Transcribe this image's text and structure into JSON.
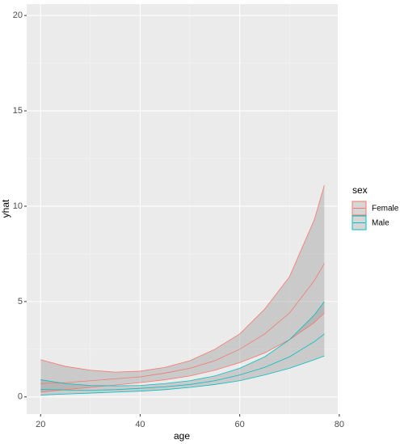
{
  "chart_data": {
    "type": "ribbon-line",
    "x_label": "age",
    "y_label": "yhat",
    "legend_title": "sex",
    "x": [
      20,
      25,
      30,
      35,
      40,
      45,
      50,
      55,
      60,
      65,
      70,
      75,
      77
    ],
    "series": [
      {
        "name": "Female",
        "color": "#F8766D",
        "values": [
          0.7,
          0.75,
          0.85,
          0.95,
          1.05,
          1.25,
          1.5,
          1.9,
          2.5,
          3.3,
          4.4,
          6.1,
          7.0
        ],
        "lower": [
          0.25,
          0.38,
          0.5,
          0.62,
          0.75,
          0.9,
          1.1,
          1.4,
          1.8,
          2.3,
          3.0,
          3.9,
          4.4
        ],
        "upper": [
          1.95,
          1.6,
          1.4,
          1.3,
          1.35,
          1.55,
          1.9,
          2.5,
          3.3,
          4.6,
          6.3,
          9.3,
          11.1
        ]
      },
      {
        "name": "Male",
        "color": "#00BFC4",
        "values": [
          0.4,
          0.36,
          0.35,
          0.38,
          0.45,
          0.53,
          0.65,
          0.85,
          1.15,
          1.55,
          2.1,
          2.9,
          3.3
        ],
        "lower": [
          0.1,
          0.15,
          0.2,
          0.25,
          0.3,
          0.38,
          0.5,
          0.65,
          0.85,
          1.15,
          1.5,
          1.95,
          2.15
        ],
        "upper": [
          0.9,
          0.7,
          0.6,
          0.58,
          0.6,
          0.7,
          0.85,
          1.1,
          1.5,
          2.1,
          3.0,
          4.3,
          5.0
        ]
      }
    ],
    "ribbon_color": "#999999",
    "xlim": [
      17.2,
      79.7
    ],
    "xticks": [
      20,
      40,
      60,
      80
    ],
    "ylim": [
      -0.9,
      20.6
    ],
    "yticks": [
      0,
      5,
      10,
      15,
      20
    ],
    "grid": true
  }
}
